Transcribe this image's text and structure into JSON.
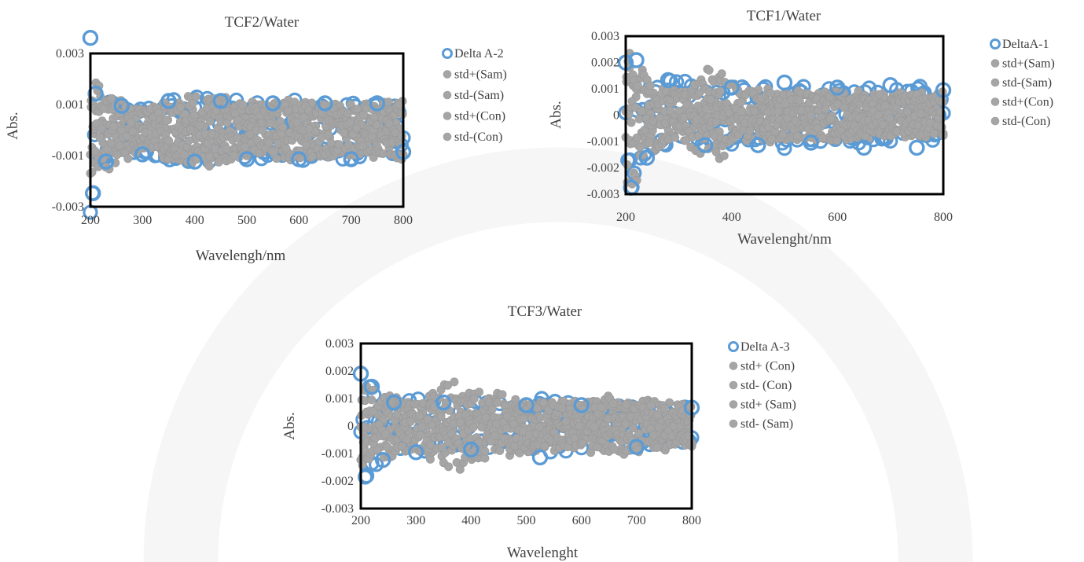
{
  "colors": {
    "delta": "#5b9bd5",
    "std": "#a5a5a5",
    "frame": "#000000",
    "text": "#404040"
  },
  "chart_data": [
    {
      "type": "scatter",
      "title": "TCF2/Water",
      "xlabel": "Wavelengh/nm",
      "ylabel": "Abs.",
      "xlim": [
        200,
        800
      ],
      "ylim": [
        -0.003,
        0.003
      ],
      "x_ticks": [
        200,
        300,
        400,
        500,
        600,
        700,
        800
      ],
      "x_tick_labels": [
        "200",
        "300",
        "400",
        "500",
        "600",
        "700",
        "800"
      ],
      "y_ticks": [
        -0.003,
        -0.001,
        0.001,
        0.003
      ],
      "y_tick_labels": [
        "-0.003",
        "-0.001",
        "0.001",
        "0.003"
      ],
      "legend_position": "right",
      "legend": [
        "Delta A-2",
        "std+(Sam)",
        "std-(Sam)",
        "std+(Con)",
        "std-(Con)"
      ],
      "series": [
        {
          "name": "Delta A-2",
          "marker": "open-circle",
          "approx": {
            "x": [
              200,
              205,
              210,
              230,
              260,
              300,
              350,
              400,
              450,
              500,
              550,
              600,
              650,
              700,
              750,
              800
            ],
            "amplitude": [
              0.0038,
              0.0026,
              0.0015,
              0.0013,
              0.001,
              0.001,
              0.0012,
              0.0013,
              0.0012,
              0.0012,
              0.0011,
              0.0012,
              0.0011,
              0.0012,
              0.0011,
              0.0009
            ]
          }
        },
        {
          "name": "std+(Sam)",
          "marker": "filled-circle",
          "approx": {
            "x": [
              200,
              205,
              210,
              230,
              300,
              350,
              400,
              430,
              500,
              600,
              700,
              800
            ],
            "amplitude": [
              0.0027,
              0.0026,
              0.0014,
              0.001,
              0.0008,
              0.0012,
              0.0014,
              0.0015,
              0.0011,
              0.0012,
              0.001,
              0.0012
            ]
          }
        },
        {
          "name": "std-(Sam)",
          "marker": "filled-circle",
          "approx": {
            "x": [
              200,
              205,
              210,
              230,
              300,
              350,
              400,
              430,
              500,
              600,
              700,
              800
            ],
            "amplitude": [
              0.0027,
              0.0026,
              0.0014,
              0.001,
              0.0008,
              0.0012,
              0.0014,
              0.0015,
              0.0011,
              0.0012,
              0.001,
              0.0012
            ]
          }
        },
        {
          "name": "std+(Con)",
          "marker": "filled-circle",
          "approx": {
            "x": [
              200,
              300,
              400,
              500,
              600,
              700,
              800
            ],
            "amplitude": [
              0.002,
              0.0008,
              0.0011,
              0.001,
              0.0011,
              0.0009,
              0.001
            ]
          }
        },
        {
          "name": "std-(Con)",
          "marker": "filled-circle",
          "approx": {
            "x": [
              200,
              300,
              400,
              500,
              600,
              700,
              800
            ],
            "amplitude": [
              0.002,
              0.0008,
              0.0011,
              0.001,
              0.0011,
              0.0009,
              0.001
            ]
          }
        }
      ]
    },
    {
      "type": "scatter",
      "title": "TCF1/Water",
      "xlabel": "Wavelenght/nm",
      "ylabel": "Abs.",
      "xlim": [
        200,
        800
      ],
      "ylim": [
        -0.003,
        0.003
      ],
      "x_ticks": [
        200,
        400,
        600,
        800
      ],
      "x_tick_labels": [
        "200",
        "400",
        "600",
        "800"
      ],
      "y_ticks": [
        -0.003,
        -0.002,
        -0.001,
        0,
        0.001,
        0.002,
        0.003
      ],
      "y_tick_labels": [
        "-0.003",
        "-0.002",
        "-0.001",
        "0",
        "0.001",
        "0.002",
        "0.003"
      ],
      "legend_position": "right",
      "legend": [
        "DeltaA-1",
        "std+(Sam)",
        "std-(Sam)",
        "std+(Con)",
        "std-(Con)"
      ],
      "series": [
        {
          "name": "DeltaA-1",
          "marker": "open-circle",
          "approx": {
            "x": [
              200,
              210,
              220,
              240,
              280,
              350,
              400,
              450,
              500,
              550,
              600,
              650,
              700,
              750,
              800
            ],
            "amplitude": [
              0.0021,
              0.0029,
              0.0022,
              0.0017,
              0.0014,
              0.0012,
              0.0011,
              0.0012,
              0.0013,
              0.0011,
              0.0011,
              0.0013,
              0.0012,
              0.0013,
              0.001
            ]
          }
        },
        {
          "name": "std+(Sam)",
          "marker": "filled-circle",
          "approx": {
            "x": [
              200,
              210,
              220,
              240,
              300,
              350,
              360,
              400,
              500,
              600,
              700,
              800
            ],
            "amplitude": [
              0.0029,
              0.0029,
              0.0027,
              0.0012,
              0.0009,
              0.0016,
              0.0022,
              0.0012,
              0.001,
              0.001,
              0.0009,
              0.0009
            ]
          }
        },
        {
          "name": "std-(Sam)",
          "marker": "filled-circle",
          "approx": {
            "x": [
              200,
              210,
              220,
              240,
              300,
              350,
              360,
              400,
              500,
              600,
              700,
              800
            ],
            "amplitude": [
              0.0029,
              0.0029,
              0.0027,
              0.0012,
              0.0009,
              0.0016,
              0.0022,
              0.0012,
              0.001,
              0.001,
              0.0009,
              0.0009
            ]
          }
        },
        {
          "name": "std+(Con)",
          "marker": "filled-circle",
          "approx": {
            "x": [
              200,
              300,
              400,
              500,
              600,
              700,
              800
            ],
            "amplitude": [
              0.002,
              0.0008,
              0.001,
              0.0009,
              0.0009,
              0.0008,
              0.0008
            ]
          }
        },
        {
          "name": "std-(Con)",
          "marker": "filled-circle",
          "approx": {
            "x": [
              200,
              300,
              400,
              500,
              600,
              700,
              800
            ],
            "amplitude": [
              0.002,
              0.0008,
              0.001,
              0.0009,
              0.0009,
              0.0008,
              0.0008
            ]
          }
        }
      ]
    },
    {
      "type": "scatter",
      "title": "TCF3/Water",
      "xlabel": "Wavelenght",
      "ylabel": "Abs.",
      "xlim": [
        200,
        800
      ],
      "ylim": [
        -0.003,
        0.003
      ],
      "x_ticks": [
        200,
        300,
        400,
        500,
        600,
        700,
        800
      ],
      "x_tick_labels": [
        "200",
        "300",
        "400",
        "500",
        "600",
        "700",
        "800"
      ],
      "y_ticks": [
        -0.003,
        -0.002,
        -0.001,
        0,
        0.001,
        0.002,
        0.003
      ],
      "y_tick_labels": [
        "-0.003",
        "-0.002",
        "-0.001",
        "0",
        "0.001",
        "0.002",
        "0.003"
      ],
      "legend_position": "right",
      "legend": [
        "Delta A-3",
        "std+ (Con)",
        "std- (Con)",
        "std+ (Sam)",
        "std- (Sam)"
      ],
      "series": [
        {
          "name": "Delta A-3",
          "marker": "open-circle",
          "approx": {
            "x": [
              200,
              210,
              220,
              240,
              260,
              300,
              350,
              400,
              500,
              525,
              600,
              700,
              800
            ],
            "amplitude": [
              0.002,
              0.0019,
              0.0015,
              0.0013,
              0.0009,
              0.001,
              0.0009,
              0.0009,
              0.0008,
              0.0012,
              0.0008,
              0.0008,
              0.0007
            ]
          }
        },
        {
          "name": "std+ (Con)",
          "marker": "filled-circle",
          "approx": {
            "x": [
              200,
              210,
              230,
              300,
              350,
              380,
              400,
              450,
              500,
              600,
              670,
              700,
              800
            ],
            "amplitude": [
              0.0022,
              0.0018,
              0.0012,
              0.0009,
              0.0015,
              0.0017,
              0.0013,
              0.0012,
              0.001,
              0.0009,
              0.0012,
              0.001,
              0.0008
            ]
          }
        },
        {
          "name": "std- (Con)",
          "marker": "filled-circle",
          "approx": {
            "x": [
              200,
              210,
              230,
              300,
              350,
              380,
              400,
              450,
              500,
              600,
              670,
              700,
              800
            ],
            "amplitude": [
              0.0022,
              0.0018,
              0.0012,
              0.0009,
              0.0015,
              0.0017,
              0.0013,
              0.0012,
              0.001,
              0.0009,
              0.0012,
              0.001,
              0.0008
            ]
          }
        },
        {
          "name": "std+ (Sam)",
          "marker": "filled-circle",
          "approx": {
            "x": [
              200,
              300,
              400,
              500,
              600,
              700,
              800
            ],
            "amplitude": [
              0.0015,
              0.0008,
              0.001,
              0.0009,
              0.0008,
              0.0009,
              0.0007
            ]
          }
        },
        {
          "name": "std- (Sam)",
          "marker": "filled-circle",
          "approx": {
            "x": [
              200,
              300,
              400,
              500,
              600,
              700,
              800
            ],
            "amplitude": [
              0.0015,
              0.0008,
              0.001,
              0.0009,
              0.0008,
              0.0009,
              0.0007
            ]
          }
        }
      ]
    }
  ]
}
